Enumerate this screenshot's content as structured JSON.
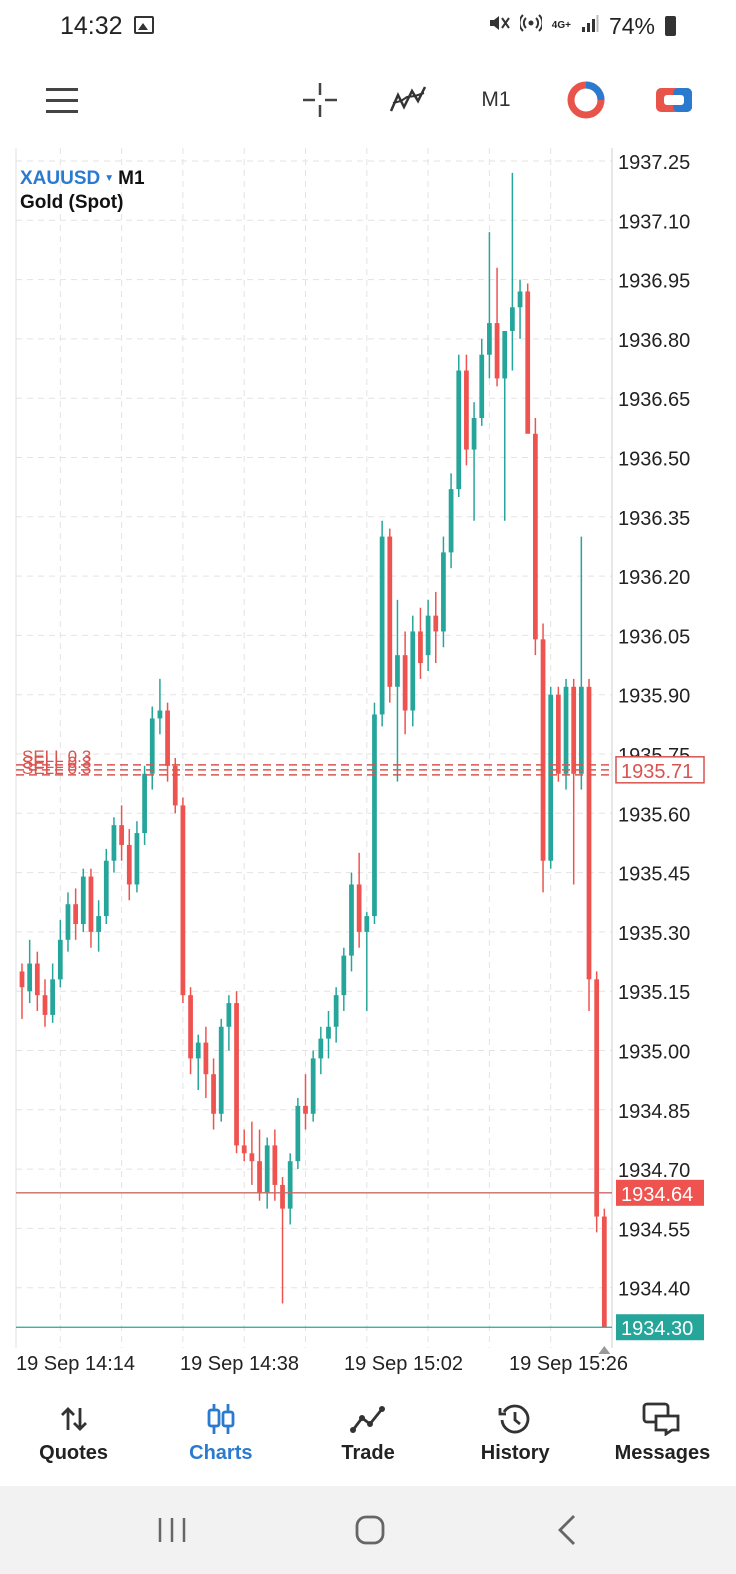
{
  "status_bar": {
    "time": "14:32",
    "network": "4G+",
    "battery": "74%"
  },
  "toolbar": {
    "timeframe": "M1",
    "icons": [
      "menu-icon",
      "crosshair-icon",
      "indicators-icon",
      "timeframe",
      "objects-icon",
      "trade-icon"
    ]
  },
  "chart_header": {
    "symbol": "XAUUSD",
    "timeframe": "M1",
    "description": "Gold (Spot)"
  },
  "chart_data": {
    "type": "candlestick",
    "symbol": "XAUUSD",
    "timeframe": "M1",
    "y_ticks": [
      "1937.25",
      "1937.10",
      "1936.95",
      "1936.80",
      "1936.65",
      "1936.50",
      "1936.35",
      "1936.20",
      "1936.05",
      "1935.90",
      "1935.75",
      "1935.60",
      "1935.45",
      "1935.30",
      "1935.15",
      "1935.00",
      "1934.85",
      "1934.70",
      "1934.55",
      "1934.40"
    ],
    "ylim": [
      1934.28,
      1937.27
    ],
    "x_labels": [
      "19 Sep 14:14",
      "19 Sep 14:38",
      "19 Sep 15:02",
      "19 Sep 15:26"
    ],
    "grid": true,
    "colors": {
      "up": "#26a69a",
      "down": "#ef5350",
      "grid": "#e3e3e3",
      "ask_line": "#c96a64",
      "bid_line": "#26a69a"
    },
    "price_lines": [
      {
        "label": "1935.71",
        "price": 1935.71,
        "kind": "sell-order",
        "color": "#d9534f"
      },
      {
        "label": "1934.64",
        "price": 1934.64,
        "kind": "ask",
        "color": "#ef5350"
      },
      {
        "label": "1934.30",
        "price": 1934.3,
        "kind": "bid",
        "color": "#26a69a"
      }
    ],
    "order_labels": [
      "SELL 0.3",
      "SELL 0.3",
      "SELL 0.3"
    ],
    "candles": [
      [
        1935.2,
        1935.22,
        1935.08,
        1935.16
      ],
      [
        1935.15,
        1935.28,
        1935.12,
        1935.22
      ],
      [
        1935.22,
        1935.25,
        1935.1,
        1935.14
      ],
      [
        1935.14,
        1935.18,
        1935.06,
        1935.09
      ],
      [
        1935.09,
        1935.22,
        1935.07,
        1935.18
      ],
      [
        1935.18,
        1935.33,
        1935.16,
        1935.28
      ],
      [
        1935.28,
        1935.4,
        1935.25,
        1935.37
      ],
      [
        1935.37,
        1935.41,
        1935.28,
        1935.32
      ],
      [
        1935.32,
        1935.46,
        1935.3,
        1935.44
      ],
      [
        1935.44,
        1935.46,
        1935.26,
        1935.3
      ],
      [
        1935.3,
        1935.38,
        1935.25,
        1935.34
      ],
      [
        1935.34,
        1935.51,
        1935.32,
        1935.48
      ],
      [
        1935.48,
        1935.59,
        1935.45,
        1935.57
      ],
      [
        1935.57,
        1935.62,
        1935.48,
        1935.52
      ],
      [
        1935.52,
        1935.56,
        1935.38,
        1935.42
      ],
      [
        1935.42,
        1935.58,
        1935.4,
        1935.55
      ],
      [
        1935.55,
        1935.72,
        1935.52,
        1935.7
      ],
      [
        1935.7,
        1935.87,
        1935.66,
        1935.84
      ],
      [
        1935.84,
        1935.94,
        1935.8,
        1935.86
      ],
      [
        1935.86,
        1935.88,
        1935.68,
        1935.72
      ],
      [
        1935.72,
        1935.74,
        1935.6,
        1935.62
      ],
      [
        1935.62,
        1935.64,
        1935.12,
        1935.14
      ],
      [
        1935.14,
        1935.16,
        1934.94,
        1934.98
      ],
      [
        1934.98,
        1935.04,
        1934.9,
        1935.02
      ],
      [
        1935.02,
        1935.06,
        1934.88,
        1934.94
      ],
      [
        1934.94,
        1934.98,
        1934.8,
        1934.84
      ],
      [
        1934.84,
        1935.08,
        1934.82,
        1935.06
      ],
      [
        1935.06,
        1935.14,
        1935.0,
        1935.12
      ],
      [
        1935.12,
        1935.15,
        1934.74,
        1934.76
      ],
      [
        1934.76,
        1934.8,
        1934.72,
        1934.74
      ],
      [
        1934.74,
        1934.82,
        1934.66,
        1934.72
      ],
      [
        1934.72,
        1934.8,
        1934.62,
        1934.64
      ],
      [
        1934.64,
        1934.78,
        1934.6,
        1934.76
      ],
      [
        1934.76,
        1934.8,
        1934.62,
        1934.66
      ],
      [
        1934.66,
        1934.68,
        1934.36,
        1934.6
      ],
      [
        1934.6,
        1934.74,
        1934.56,
        1934.72
      ],
      [
        1934.72,
        1934.88,
        1934.7,
        1934.86
      ],
      [
        1934.86,
        1934.94,
        1934.8,
        1934.84
      ],
      [
        1934.84,
        1935.0,
        1934.82,
        1934.98
      ],
      [
        1934.98,
        1935.06,
        1934.94,
        1935.03
      ],
      [
        1935.03,
        1935.1,
        1934.98,
        1935.06
      ],
      [
        1935.06,
        1935.16,
        1935.02,
        1935.14
      ],
      [
        1935.14,
        1935.26,
        1935.1,
        1935.24
      ],
      [
        1935.24,
        1935.45,
        1935.2,
        1935.42
      ],
      [
        1935.42,
        1935.5,
        1935.26,
        1935.3
      ],
      [
        1935.3,
        1935.35,
        1935.1,
        1935.34
      ],
      [
        1935.34,
        1935.88,
        1935.32,
        1935.85
      ],
      [
        1935.85,
        1936.34,
        1935.82,
        1936.3
      ],
      [
        1936.3,
        1936.32,
        1935.88,
        1935.92
      ],
      [
        1935.92,
        1936.14,
        1935.68,
        1936.0
      ],
      [
        1936.0,
        1936.06,
        1935.8,
        1935.86
      ],
      [
        1935.86,
        1936.1,
        1935.82,
        1936.06
      ],
      [
        1936.06,
        1936.12,
        1935.94,
        1935.98
      ],
      [
        1936.0,
        1936.14,
        1935.96,
        1936.1
      ],
      [
        1936.1,
        1936.16,
        1935.98,
        1936.06
      ],
      [
        1936.06,
        1936.3,
        1936.02,
        1936.26
      ],
      [
        1936.26,
        1936.46,
        1936.22,
        1936.42
      ],
      [
        1936.42,
        1936.76,
        1936.4,
        1936.72
      ],
      [
        1936.72,
        1936.76,
        1936.48,
        1936.52
      ],
      [
        1936.52,
        1936.64,
        1936.34,
        1936.6
      ],
      [
        1936.6,
        1936.8,
        1936.58,
        1936.76
      ],
      [
        1936.76,
        1937.07,
        1936.7,
        1936.84
      ],
      [
        1936.84,
        1936.98,
        1936.68,
        1936.7
      ],
      [
        1936.7,
        1936.8,
        1936.34,
        1936.82
      ],
      [
        1936.82,
        1937.22,
        1936.72,
        1936.88
      ],
      [
        1936.88,
        1936.95,
        1936.8,
        1936.92
      ],
      [
        1936.92,
        1936.94,
        1936.58,
        1936.56
      ],
      [
        1936.56,
        1936.6,
        1936.0,
        1936.04
      ],
      [
        1936.04,
        1936.08,
        1935.4,
        1935.48
      ],
      [
        1935.48,
        1935.92,
        1935.46,
        1935.9
      ],
      [
        1935.9,
        1935.92,
        1935.68,
        1935.7
      ],
      [
        1935.7,
        1935.94,
        1935.66,
        1935.92
      ],
      [
        1935.92,
        1935.94,
        1935.42,
        1935.7
      ],
      [
        1935.7,
        1936.3,
        1935.66,
        1935.92
      ],
      [
        1935.92,
        1935.94,
        1935.1,
        1935.18
      ],
      [
        1935.18,
        1935.2,
        1934.54,
        1934.58
      ],
      [
        1934.58,
        1934.6,
        1934.3,
        1934.3
      ]
    ]
  },
  "bottom_nav": {
    "items": [
      {
        "id": "quotes",
        "label": "Quotes",
        "icon": "quotes-icon"
      },
      {
        "id": "charts",
        "label": "Charts",
        "icon": "charts-icon"
      },
      {
        "id": "trade",
        "label": "Trade",
        "icon": "trade-icon"
      },
      {
        "id": "history",
        "label": "History",
        "icon": "history-icon"
      },
      {
        "id": "messages",
        "label": "Messages",
        "icon": "messages-icon"
      }
    ],
    "active": "charts",
    "active_color": "#2a7bd0"
  },
  "system_nav": [
    "recents-button",
    "home-button",
    "back-button"
  ]
}
